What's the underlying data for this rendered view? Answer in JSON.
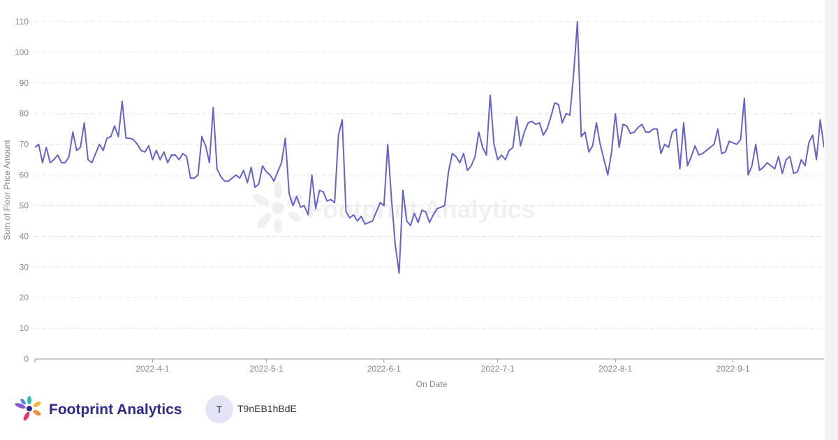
{
  "chart_data": {
    "type": "line",
    "x_label": "On Date",
    "y_label": "Sum of Floor Price Amount",
    "color": "#6363c9",
    "grid": true,
    "ylim": [
      0,
      110
    ],
    "yticks": [
      0,
      10,
      20,
      30,
      40,
      50,
      60,
      70,
      80,
      90,
      100,
      110
    ],
    "xlim": [
      "2022-3-1",
      "2022-9-25"
    ],
    "xticks": [
      "2022-4-1",
      "2022-5-1",
      "2022-6-1",
      "2022-7-1",
      "2022-8-1",
      "2022-9-1"
    ],
    "x": [
      "2022-3-1",
      "2022-3-2",
      "2022-3-3",
      "2022-3-4",
      "2022-3-5",
      "2022-3-6",
      "2022-3-7",
      "2022-3-8",
      "2022-3-9",
      "2022-3-10",
      "2022-3-11",
      "2022-3-12",
      "2022-3-13",
      "2022-3-14",
      "2022-3-15",
      "2022-3-16",
      "2022-3-17",
      "2022-3-18",
      "2022-3-19",
      "2022-3-20",
      "2022-3-21",
      "2022-3-22",
      "2022-3-23",
      "2022-3-24",
      "2022-3-25",
      "2022-3-26",
      "2022-3-27",
      "2022-3-28",
      "2022-3-29",
      "2022-3-30",
      "2022-3-31",
      "2022-4-1",
      "2022-4-2",
      "2022-4-3",
      "2022-4-4",
      "2022-4-5",
      "2022-4-6",
      "2022-4-7",
      "2022-4-8",
      "2022-4-9",
      "2022-4-10",
      "2022-4-11",
      "2022-4-12",
      "2022-4-13",
      "2022-4-14",
      "2022-4-15",
      "2022-4-16",
      "2022-4-17",
      "2022-4-18",
      "2022-4-19",
      "2022-4-20",
      "2022-4-21",
      "2022-4-22",
      "2022-4-23",
      "2022-4-24",
      "2022-4-25",
      "2022-4-26",
      "2022-4-27",
      "2022-4-28",
      "2022-4-29",
      "2022-4-30",
      "2022-5-1",
      "2022-5-2",
      "2022-5-3",
      "2022-5-4",
      "2022-5-5",
      "2022-5-6",
      "2022-5-7",
      "2022-5-8",
      "2022-5-9",
      "2022-5-10",
      "2022-5-11",
      "2022-5-12",
      "2022-5-13",
      "2022-5-14",
      "2022-5-15",
      "2022-5-16",
      "2022-5-17",
      "2022-5-18",
      "2022-5-19",
      "2022-5-20",
      "2022-5-21",
      "2022-5-22",
      "2022-5-23",
      "2022-5-24",
      "2022-5-25",
      "2022-5-26",
      "2022-5-27",
      "2022-5-28",
      "2022-5-29",
      "2022-5-30",
      "2022-5-31",
      "2022-6-1",
      "2022-6-2",
      "2022-6-3",
      "2022-6-4",
      "2022-6-5",
      "2022-6-6",
      "2022-6-7",
      "2022-6-8",
      "2022-6-9",
      "2022-6-10",
      "2022-6-11",
      "2022-6-12",
      "2022-6-13",
      "2022-6-14",
      "2022-6-15",
      "2022-6-16",
      "2022-6-17",
      "2022-6-18",
      "2022-6-19",
      "2022-6-20",
      "2022-6-21",
      "2022-6-22",
      "2022-6-23",
      "2022-6-24",
      "2022-6-25",
      "2022-6-26",
      "2022-6-27",
      "2022-6-28",
      "2022-6-29",
      "2022-6-30",
      "2022-7-1",
      "2022-7-2",
      "2022-7-3",
      "2022-7-4",
      "2022-7-5",
      "2022-7-6",
      "2022-7-7",
      "2022-7-8",
      "2022-7-9",
      "2022-7-10",
      "2022-7-11",
      "2022-7-12",
      "2022-7-13",
      "2022-7-14",
      "2022-7-15",
      "2022-7-16",
      "2022-7-17",
      "2022-7-18",
      "2022-7-19",
      "2022-7-20",
      "2022-7-21",
      "2022-7-22",
      "2022-7-23",
      "2022-7-24",
      "2022-7-25",
      "2022-7-26",
      "2022-7-27",
      "2022-7-28",
      "2022-7-29",
      "2022-7-30",
      "2022-7-31",
      "2022-8-1",
      "2022-8-2",
      "2022-8-3",
      "2022-8-4",
      "2022-8-5",
      "2022-8-6",
      "2022-8-7",
      "2022-8-8",
      "2022-8-9",
      "2022-8-10",
      "2022-8-11",
      "2022-8-12",
      "2022-8-13",
      "2022-8-14",
      "2022-8-15",
      "2022-8-16",
      "2022-8-17",
      "2022-8-18",
      "2022-8-19",
      "2022-8-20",
      "2022-8-21",
      "2022-8-22",
      "2022-8-23",
      "2022-8-24",
      "2022-8-25",
      "2022-8-26",
      "2022-8-27",
      "2022-8-28",
      "2022-8-29",
      "2022-8-30",
      "2022-8-31",
      "2022-9-1",
      "2022-9-2",
      "2022-9-3",
      "2022-9-4",
      "2022-9-5",
      "2022-9-6",
      "2022-9-7",
      "2022-9-8",
      "2022-9-9",
      "2022-9-10",
      "2022-9-11",
      "2022-9-12",
      "2022-9-13",
      "2022-9-14",
      "2022-9-15",
      "2022-9-16",
      "2022-9-17",
      "2022-9-18",
      "2022-9-19",
      "2022-9-20",
      "2022-9-21",
      "2022-9-22",
      "2022-9-23",
      "2022-9-24",
      "2022-9-25"
    ],
    "values": [
      69,
      70,
      64,
      69,
      64,
      65,
      66.5,
      64,
      64,
      66,
      74,
      68,
      69,
      77,
      65,
      64,
      67,
      70,
      68,
      72,
      72.5,
      76,
      72.5,
      84,
      72,
      72,
      71.5,
      70,
      68,
      67.5,
      69.5,
      65,
      68,
      65,
      67.5,
      64,
      66.5,
      66.5,
      65,
      67,
      66,
      59,
      59,
      60,
      72.5,
      69.5,
      64,
      82,
      62,
      59.5,
      58,
      58,
      59,
      60,
      59,
      61.5,
      57.5,
      62.5,
      56,
      57,
      63,
      61,
      60,
      58,
      61,
      64,
      72,
      54,
      50,
      53,
      49.5,
      50,
      47,
      60,
      49,
      55,
      54.5,
      51.5,
      52,
      51,
      73,
      78,
      48,
      46,
      47,
      45,
      46.5,
      44,
      44.5,
      45,
      48,
      51,
      50,
      70,
      52,
      37,
      28,
      55,
      45,
      43.5,
      47.5,
      44.5,
      48.5,
      48,
      44.5,
      47,
      49,
      49.5,
      50,
      61,
      67,
      66,
      64,
      67,
      61.5,
      63,
      66,
      74,
      69,
      66.5,
      86,
      70,
      65,
      66.5,
      65,
      68,
      69,
      79,
      69.5,
      74,
      77,
      77.5,
      76.5,
      77,
      73,
      75,
      79,
      83.5,
      83,
      77,
      80,
      79.5,
      93,
      110,
      72.5,
      74,
      67.5,
      69.5,
      77,
      70,
      65,
      60,
      67.5,
      80,
      69,
      76.5,
      76,
      73.5,
      74,
      75.5,
      76.5,
      74,
      74,
      75,
      75,
      67,
      70,
      69,
      74,
      75,
      62,
      77,
      63,
      66,
      69.5,
      66.5,
      67,
      68,
      69,
      70,
      75,
      67,
      67.5,
      71,
      70.5,
      70,
      71.5,
      85,
      60,
      63,
      70,
      61.5,
      62.5,
      64,
      63,
      62,
      66,
      60.5,
      65,
      66,
      60.5,
      61,
      65,
      63,
      70.5,
      73,
      65,
      78,
      69
    ]
  },
  "watermark": "Footprint Analytics",
  "footer": {
    "brand": "Footprint Analytics",
    "avatar": "T",
    "user": "T9nEB1hBdE"
  }
}
